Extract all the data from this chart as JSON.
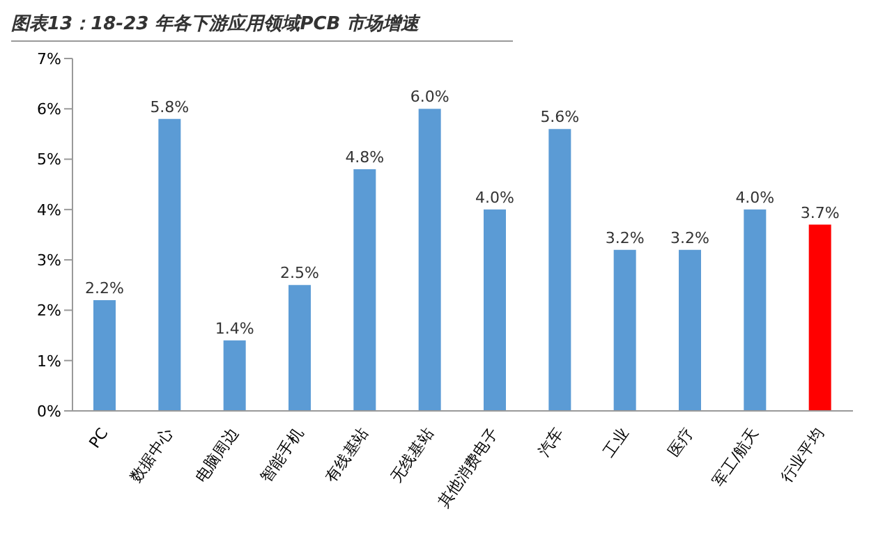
{
  "chart_data": {
    "type": "bar",
    "title": "图表13：18-23 年各下游应用领域PCB 市场增速",
    "categories": [
      "PC",
      "数据中心",
      "电脑周边",
      "智能手机",
      "有线基站",
      "无线基站",
      "其他消费电子",
      "汽车",
      "工业",
      "医疗",
      "军工/航天",
      "行业平均"
    ],
    "values": [
      2.2,
      5.8,
      1.4,
      2.5,
      4.8,
      6.0,
      4.0,
      5.6,
      3.2,
      3.2,
      4.0,
      3.7
    ],
    "value_labels": [
      "2.2%",
      "5.8%",
      "1.4%",
      "2.5%",
      "4.8%",
      "6.0%",
      "4.0%",
      "5.6%",
      "3.2%",
      "3.2%",
      "4.0%",
      "3.7%"
    ],
    "colors": [
      "#5b9bd5",
      "#5b9bd5",
      "#5b9bd5",
      "#5b9bd5",
      "#5b9bd5",
      "#5b9bd5",
      "#5b9bd5",
      "#5b9bd5",
      "#5b9bd5",
      "#5b9bd5",
      "#5b9bd5",
      "#ff0000"
    ],
    "ylim": [
      0,
      7
    ],
    "yticks": [
      {
        "value": 0,
        "label": "0%"
      },
      {
        "value": 1,
        "label": "1%"
      },
      {
        "value": 2,
        "label": "2%"
      },
      {
        "value": 3,
        "label": "3%"
      },
      {
        "value": 4,
        "label": "4%"
      },
      {
        "value": 5,
        "label": "5%"
      },
      {
        "value": 6,
        "label": "6%"
      },
      {
        "value": 7,
        "label": "7%"
      }
    ],
    "grid": false,
    "legend": false
  }
}
